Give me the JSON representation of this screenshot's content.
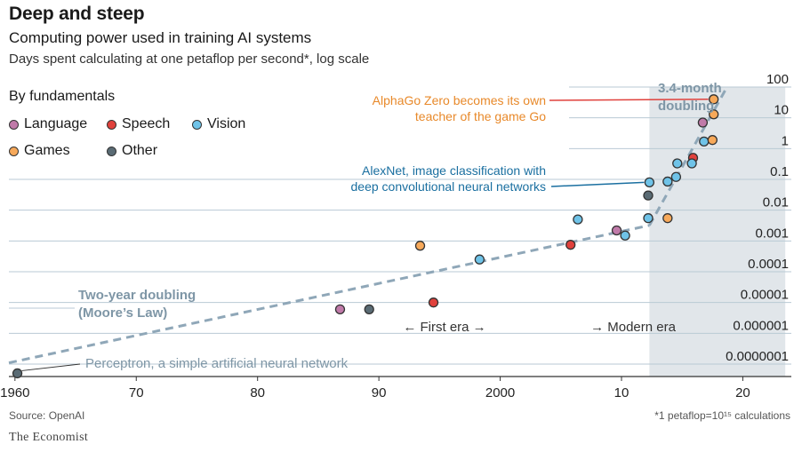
{
  "title": "Deep and steep",
  "subtitle": "Computing power used in training AI systems",
  "subsubtitle": "Days spent calculating at one petaflop per second*, log scale",
  "legend": {
    "title": "By fundamentals",
    "items": [
      {
        "label": "Language",
        "color": "#c07aa9"
      },
      {
        "label": "Speech",
        "color": "#e0413c"
      },
      {
        "label": "Vision",
        "color": "#6fc3e8"
      },
      {
        "label": "Games",
        "color": "#f7a95a"
      },
      {
        "label": "Other",
        "color": "#5a6b74"
      }
    ]
  },
  "source": "Source: OpenAI",
  "footnote": "*1 petaflop=10¹⁵ calculations",
  "brand": "The Economist",
  "chart_data": {
    "type": "scatter",
    "y_scale": "log",
    "ylim": [
      1e-07,
      100
    ],
    "xlim": [
      1959.5,
      2024
    ],
    "y_ticks": [
      {
        "value": 100,
        "label": "100"
      },
      {
        "value": 10,
        "label": "10"
      },
      {
        "value": 1,
        "label": "1"
      },
      {
        "value": 0.1,
        "label": "0.1"
      },
      {
        "value": 0.01,
        "label": "0.01"
      },
      {
        "value": 0.001,
        "label": "0.001"
      },
      {
        "value": 0.0001,
        "label": "0.0001"
      },
      {
        "value": 1e-05,
        "label": "0.00001"
      },
      {
        "value": 1e-06,
        "label": "0.000001"
      },
      {
        "value": 1e-07,
        "label": "0.0000001"
      }
    ],
    "x_ticks": [
      {
        "value": 1960,
        "label": "1960"
      },
      {
        "value": 1970,
        "label": "70"
      },
      {
        "value": 1980,
        "label": "80"
      },
      {
        "value": 1990,
        "label": "90"
      },
      {
        "value": 2000,
        "label": "2000"
      },
      {
        "value": 2010,
        "label": "10"
      },
      {
        "value": 2020,
        "label": "20"
      }
    ],
    "modern_era_span": [
      2012.3,
      2023.5
    ],
    "series": [
      {
        "category": "Other",
        "points": [
          [
            1960.2,
            5e-08
          ],
          [
            1989.2,
            6e-06
          ],
          [
            2012.2,
            0.03
          ]
        ]
      },
      {
        "category": "Language",
        "points": [
          [
            1986.8,
            6e-06
          ],
          [
            2009.6,
            0.0022
          ],
          [
            2016.7,
            7
          ]
        ]
      },
      {
        "category": "Speech",
        "points": [
          [
            1994.5,
            1e-05
          ],
          [
            2005.8,
            0.00075
          ],
          [
            2015.9,
            0.5
          ]
        ]
      },
      {
        "category": "Vision",
        "points": [
          [
            1998.3,
            0.00025
          ],
          [
            2006.4,
            0.005
          ],
          [
            2010.3,
            0.0015
          ],
          [
            2012.2,
            0.0055
          ],
          [
            2012.3,
            0.08
          ],
          [
            2013.8,
            0.085
          ],
          [
            2014.5,
            0.12
          ],
          [
            2014.6,
            0.33
          ],
          [
            2015.8,
            0.33
          ],
          [
            2016.8,
            1.7
          ]
        ]
      },
      {
        "category": "Games",
        "points": [
          [
            1993.4,
            0.0007
          ],
          [
            2013.8,
            0.0055
          ],
          [
            2017.5,
            1.9
          ],
          [
            2017.6,
            13
          ],
          [
            2017.6,
            40
          ]
        ]
      }
    ],
    "trend_lines": [
      {
        "label": "Two-year doubling (Moore's Law)",
        "from": [
          1959.5,
          1.1e-07
        ],
        "to": [
          2012.3,
          0.0032
        ]
      },
      {
        "label": "3.4-month doubling",
        "from": [
          2012.3,
          0.0032
        ],
        "to": [
          2018.7,
          100
        ]
      }
    ],
    "annotations": {
      "moore_line1": "Two-year doubling",
      "moore_line2": "(Moore’s Law)",
      "fast_line1": "3.4-month",
      "fast_line2": "doubling",
      "alphago_line1": "AlphaGo Zero becomes its own",
      "alphago_line2": "teacher of the game Go",
      "alexnet_line1": "AlexNet, image classification with",
      "alexnet_line2": "deep convolutional neural networks",
      "perceptron": "Perceptron, a simple artificial neural network",
      "first_era": "← First era →",
      "modern_era": "→ Modern era"
    }
  }
}
